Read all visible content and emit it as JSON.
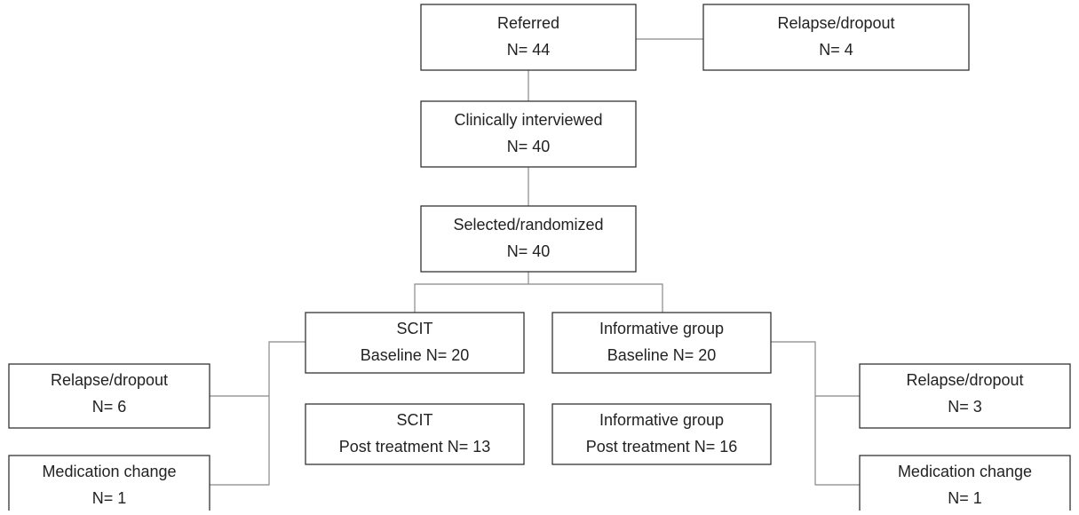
{
  "nodes": [
    {
      "title": "Referred",
      "count": "N= 44"
    },
    {
      "title": "Relapse/dropout",
      "count": "N= 4"
    },
    {
      "title": "Clinically interviewed",
      "count": "N= 40"
    },
    {
      "title": "Selected/randomized",
      "count": "N= 40"
    },
    {
      "title": "SCIT",
      "count": "Baseline N= 20"
    },
    {
      "title": "Informative group",
      "count": "Baseline N= 20"
    },
    {
      "title": "SCIT",
      "count": "Post treatment N= 13"
    },
    {
      "title": "Informative group",
      "count": "Post treatment N= 16"
    },
    {
      "title": "Relapse/dropout",
      "count": "N= 6"
    },
    {
      "title": "Medication change",
      "count": "N= 1"
    },
    {
      "title": "Relapse/dropout",
      "count": "N= 3"
    },
    {
      "title": "Medication change",
      "count": "N= 1"
    }
  ]
}
